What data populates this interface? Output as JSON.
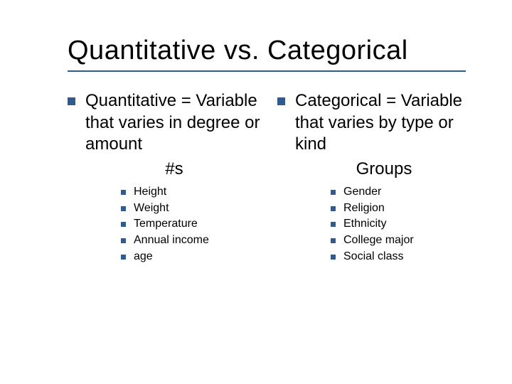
{
  "colors": {
    "bullet": "#315a8e",
    "rule": "#315a8e",
    "text": "#000000",
    "background": "#ffffff"
  },
  "fonts": {
    "title_size": 38,
    "main_size": 24,
    "sub_size": 16,
    "family": "Verdana"
  },
  "title": "Quantitative vs. Categorical",
  "left": {
    "main": "Quantitative = Variable that varies in degree or amount",
    "keyword": "#s",
    "items": [
      "Height",
      "Weight",
      "Temperature",
      "Annual income",
      "age"
    ]
  },
  "right": {
    "main": "Categorical = Variable that varies by type or kind",
    "keyword": "Groups",
    "items": [
      "Gender",
      "Religion",
      "Ethnicity",
      "College major",
      "Social class"
    ]
  }
}
